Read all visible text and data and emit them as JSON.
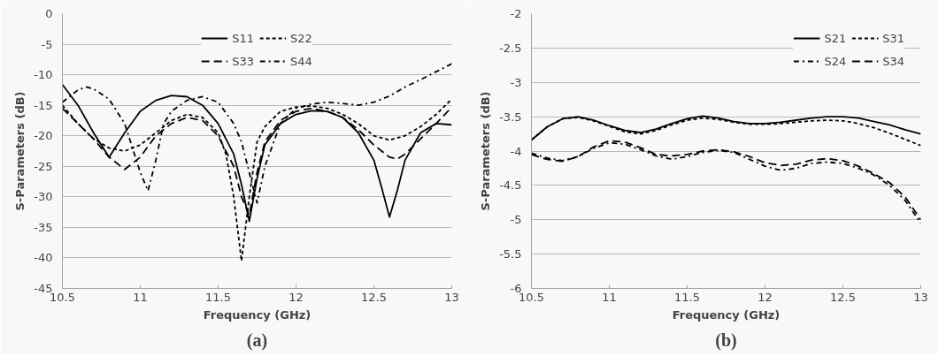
{
  "chart_data": [
    {
      "type": "line",
      "title": "(a)",
      "xlabel": "Frequency (GHz)",
      "ylabel": "S-Parameters (dB)",
      "xlim": [
        10.5,
        13
      ],
      "xticks": [
        10.5,
        11,
        11.5,
        12,
        12.5,
        13
      ],
      "ylim": [
        -45,
        0
      ],
      "yticks": [
        -45,
        -40,
        -35,
        -30,
        -25,
        -20,
        -15,
        -10,
        -5,
        0
      ],
      "grid": "y",
      "legend": "top",
      "series": [
        {
          "name": "S11",
          "color": "#000000",
          "line_style": "solid",
          "x": [
            10.5,
            10.6,
            10.7,
            10.8,
            10.9,
            11.0,
            11.1,
            11.2,
            11.3,
            11.4,
            11.5,
            11.6,
            11.65,
            11.7,
            11.75,
            11.8,
            11.9,
            12.0,
            12.1,
            12.2,
            12.3,
            12.4,
            12.5,
            12.55,
            12.6,
            12.65,
            12.7,
            12.8,
            12.9,
            13.0
          ],
          "values": [
            -11.6,
            -15,
            -19.5,
            -23.5,
            -19.5,
            -16,
            -14.2,
            -13.4,
            -13.6,
            -15,
            -18,
            -23,
            -28,
            -34,
            -27,
            -21.5,
            -18,
            -16.5,
            -15.9,
            -16,
            -17,
            -19.5,
            -24,
            -28.5,
            -33.3,
            -29,
            -24,
            -19.5,
            -18,
            -18.2
          ]
        },
        {
          "name": "S22",
          "color": "#000000",
          "line_style": "dotted",
          "x": [
            10.5,
            10.6,
            10.7,
            10.8,
            10.9,
            11.0,
            11.1,
            11.2,
            11.3,
            11.4,
            11.5,
            11.55,
            11.6,
            11.65,
            11.7,
            11.75,
            11.8,
            11.9,
            12.0,
            12.1,
            12.2,
            12.3,
            12.4,
            12.5,
            12.6,
            12.7,
            12.8,
            12.9,
            13.0
          ],
          "values": [
            -15,
            -18,
            -20.5,
            -22,
            -22.5,
            -21.5,
            -19.5,
            -17.5,
            -16.5,
            -17,
            -19.5,
            -23,
            -30,
            -40.5,
            -30,
            -21,
            -18.5,
            -16,
            -15.3,
            -15.1,
            -15.5,
            -16.5,
            -18,
            -20,
            -20.7,
            -20,
            -18.5,
            -16.5,
            -14
          ]
        },
        {
          "name": "S33",
          "color": "#000000",
          "line_style": "dashed",
          "x": [
            10.5,
            10.6,
            10.7,
            10.8,
            10.9,
            11.0,
            11.1,
            11.2,
            11.3,
            11.4,
            11.5,
            11.6,
            11.65,
            11.7,
            11.75,
            11.8,
            11.9,
            12.0,
            12.1,
            12.2,
            12.3,
            12.4,
            12.5,
            12.6,
            12.65,
            12.7,
            12.8,
            12.9,
            13.0
          ],
          "values": [
            -15.5,
            -18,
            -20.5,
            -23.5,
            -25.5,
            -23.5,
            -20,
            -18,
            -17,
            -17.5,
            -20,
            -25,
            -30,
            -33,
            -26,
            -21,
            -17.5,
            -16,
            -15.5,
            -16,
            -17,
            -19,
            -21.5,
            -23.5,
            -23.8,
            -23,
            -20.5,
            -18,
            -15.3
          ]
        },
        {
          "name": "S44",
          "color": "#000000",
          "line_style": "dashdot",
          "x": [
            10.5,
            10.6,
            10.65,
            10.7,
            10.8,
            10.9,
            10.95,
            11.0,
            11.05,
            11.1,
            11.15,
            11.2,
            11.3,
            11.4,
            11.5,
            11.6,
            11.65,
            11.7,
            11.75,
            11.8,
            11.9,
            12.0,
            12.1,
            12.2,
            12.3,
            12.4,
            12.5,
            12.6,
            12.7,
            12.8,
            12.9,
            13.0
          ],
          "values": [
            -14.5,
            -12.5,
            -12,
            -12.3,
            -14,
            -18,
            -22,
            -26,
            -29,
            -24,
            -18,
            -16,
            -14.2,
            -13.6,
            -14.5,
            -18,
            -21,
            -26,
            -31,
            -25,
            -18,
            -15.5,
            -14.8,
            -14.5,
            -14.7,
            -15,
            -14.5,
            -13.5,
            -12,
            -10.8,
            -9.5,
            -8.2
          ]
        }
      ]
    },
    {
      "type": "line",
      "title": "(b)",
      "xlabel": "Frequency (GHz)",
      "ylabel": "S-Parameters (dB)",
      "xlim": [
        10.5,
        13
      ],
      "xticks": [
        10.5,
        11,
        11.5,
        12,
        12.5,
        13
      ],
      "ylim": [
        -6,
        -2
      ],
      "yticks": [
        -6,
        -5.5,
        -5,
        -4.5,
        -4,
        -3.5,
        -3,
        -2.5,
        -2
      ],
      "grid": "y",
      "legend": "top right",
      "x": [
        10.5,
        10.6,
        10.7,
        10.8,
        10.9,
        11.0,
        11.1,
        11.2,
        11.3,
        11.4,
        11.5,
        11.6,
        11.7,
        11.8,
        11.9,
        12.0,
        12.1,
        12.2,
        12.3,
        12.4,
        12.5,
        12.6,
        12.7,
        12.8,
        12.9,
        13.0
      ],
      "series": [
        {
          "name": "S21",
          "color": "#000000",
          "line_style": "solid",
          "values": [
            -3.84,
            -3.65,
            -3.53,
            -3.5,
            -3.55,
            -3.63,
            -3.7,
            -3.73,
            -3.68,
            -3.6,
            -3.53,
            -3.49,
            -3.52,
            -3.57,
            -3.6,
            -3.6,
            -3.58,
            -3.55,
            -3.52,
            -3.5,
            -3.5,
            -3.52,
            -3.57,
            -3.62,
            -3.69,
            -3.75
          ]
        },
        {
          "name": "S31",
          "color": "#000000",
          "line_style": "dotted",
          "values": [
            -3.84,
            -3.65,
            -3.53,
            -3.51,
            -3.56,
            -3.64,
            -3.72,
            -3.75,
            -3.7,
            -3.62,
            -3.55,
            -3.52,
            -3.54,
            -3.58,
            -3.61,
            -3.61,
            -3.6,
            -3.58,
            -3.56,
            -3.55,
            -3.56,
            -3.6,
            -3.66,
            -3.74,
            -3.83,
            -3.92
          ]
        },
        {
          "name": "S24",
          "color": "#000000",
          "line_style": "dashdot",
          "values": [
            -4.03,
            -4.1,
            -4.14,
            -4.08,
            -3.96,
            -3.88,
            -3.9,
            -3.98,
            -4.07,
            -4.12,
            -4.08,
            -4.02,
            -3.99,
            -4.02,
            -4.12,
            -4.22,
            -4.28,
            -4.25,
            -4.18,
            -4.16,
            -4.18,
            -4.25,
            -4.35,
            -4.5,
            -4.72,
            -5.05
          ]
        },
        {
          "name": "S34",
          "color": "#000000",
          "line_style": "dashed",
          "values": [
            -4.05,
            -4.12,
            -4.15,
            -4.08,
            -3.94,
            -3.85,
            -3.87,
            -3.95,
            -4.05,
            -4.07,
            -4.05,
            -4.0,
            -3.98,
            -4.01,
            -4.08,
            -4.17,
            -4.21,
            -4.19,
            -4.13,
            -4.11,
            -4.14,
            -4.22,
            -4.33,
            -4.46,
            -4.67,
            -5.0
          ]
        }
      ]
    }
  ]
}
